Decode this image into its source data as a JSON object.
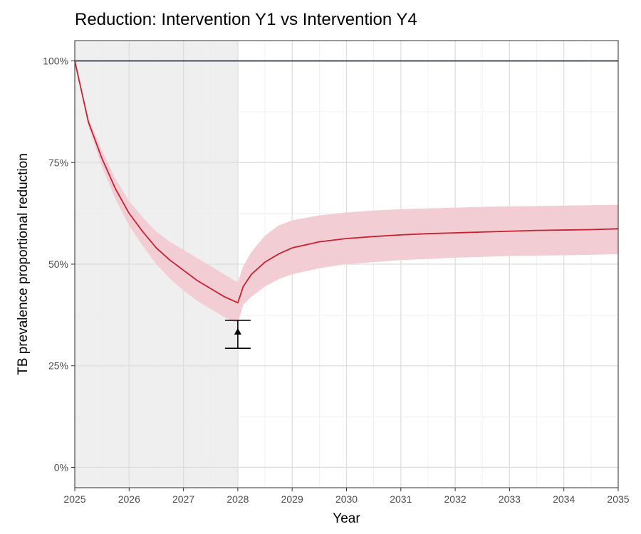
{
  "chart_data": {
    "type": "line",
    "title": "Reduction: Intervention Y1 vs Intervention Y4",
    "xlabel": "Year",
    "ylabel": "TB prevalence proportional reduction",
    "xlim": [
      2025,
      2035
    ],
    "ylim": [
      -0.05,
      1.05
    ],
    "x_ticks": [
      2025,
      2026,
      2027,
      2028,
      2029,
      2030,
      2031,
      2032,
      2033,
      2034,
      2035
    ],
    "x_tick_labels": [
      "2025",
      "2026",
      "2027",
      "2028",
      "2029",
      "2030",
      "2031",
      "2032",
      "2033",
      "2034",
      "2035"
    ],
    "y_ticks": [
      0,
      0.25,
      0.5,
      0.75,
      1.0
    ],
    "y_tick_labels": [
      "0%",
      "25%",
      "50%",
      "75%",
      "100%"
    ],
    "grid": true,
    "shaded_region": {
      "x": [
        2025,
        2028
      ],
      "color": "#efefef"
    },
    "reference_line": {
      "y": 1.0,
      "color": "#1f2a44"
    },
    "series": [
      {
        "color": "#c8202f",
        "band_color": "#f2cdd3",
        "x": [
          2025.0,
          2025.25,
          2025.5,
          2025.75,
          2026.0,
          2026.25,
          2026.5,
          2026.75,
          2027.0,
          2027.25,
          2027.5,
          2027.75,
          2028.0,
          2028.1,
          2028.25,
          2028.5,
          2028.75,
          2029.0,
          2029.5,
          2030.0,
          2030.5,
          2031.0,
          2031.5,
          2032.0,
          2032.5,
          2033.0,
          2033.5,
          2034.0,
          2034.5,
          2035.0
        ],
        "y": [
          1.0,
          0.85,
          0.76,
          0.685,
          0.625,
          0.58,
          0.54,
          0.51,
          0.485,
          0.46,
          0.44,
          0.42,
          0.405,
          0.445,
          0.475,
          0.505,
          0.525,
          0.54,
          0.555,
          0.563,
          0.568,
          0.572,
          0.575,
          0.577,
          0.579,
          0.581,
          0.583,
          0.584,
          0.585,
          0.587
        ],
        "lower": [
          1.0,
          0.84,
          0.74,
          0.66,
          0.595,
          0.545,
          0.5,
          0.465,
          0.435,
          0.41,
          0.39,
          0.37,
          0.355,
          0.4,
          0.42,
          0.445,
          0.463,
          0.475,
          0.49,
          0.5,
          0.505,
          0.51,
          0.513,
          0.516,
          0.518,
          0.52,
          0.521,
          0.522,
          0.523,
          0.525
        ],
        "upper": [
          1.0,
          0.86,
          0.78,
          0.71,
          0.655,
          0.615,
          0.58,
          0.555,
          0.535,
          0.515,
          0.495,
          0.475,
          0.455,
          0.495,
          0.53,
          0.57,
          0.595,
          0.608,
          0.62,
          0.627,
          0.632,
          0.635,
          0.637,
          0.639,
          0.641,
          0.642,
          0.643,
          0.644,
          0.645,
          0.646
        ]
      }
    ],
    "observed_point": {
      "x": 2028,
      "y": 0.332,
      "lower": 0.293,
      "upper": 0.362,
      "color": "#000000"
    }
  }
}
